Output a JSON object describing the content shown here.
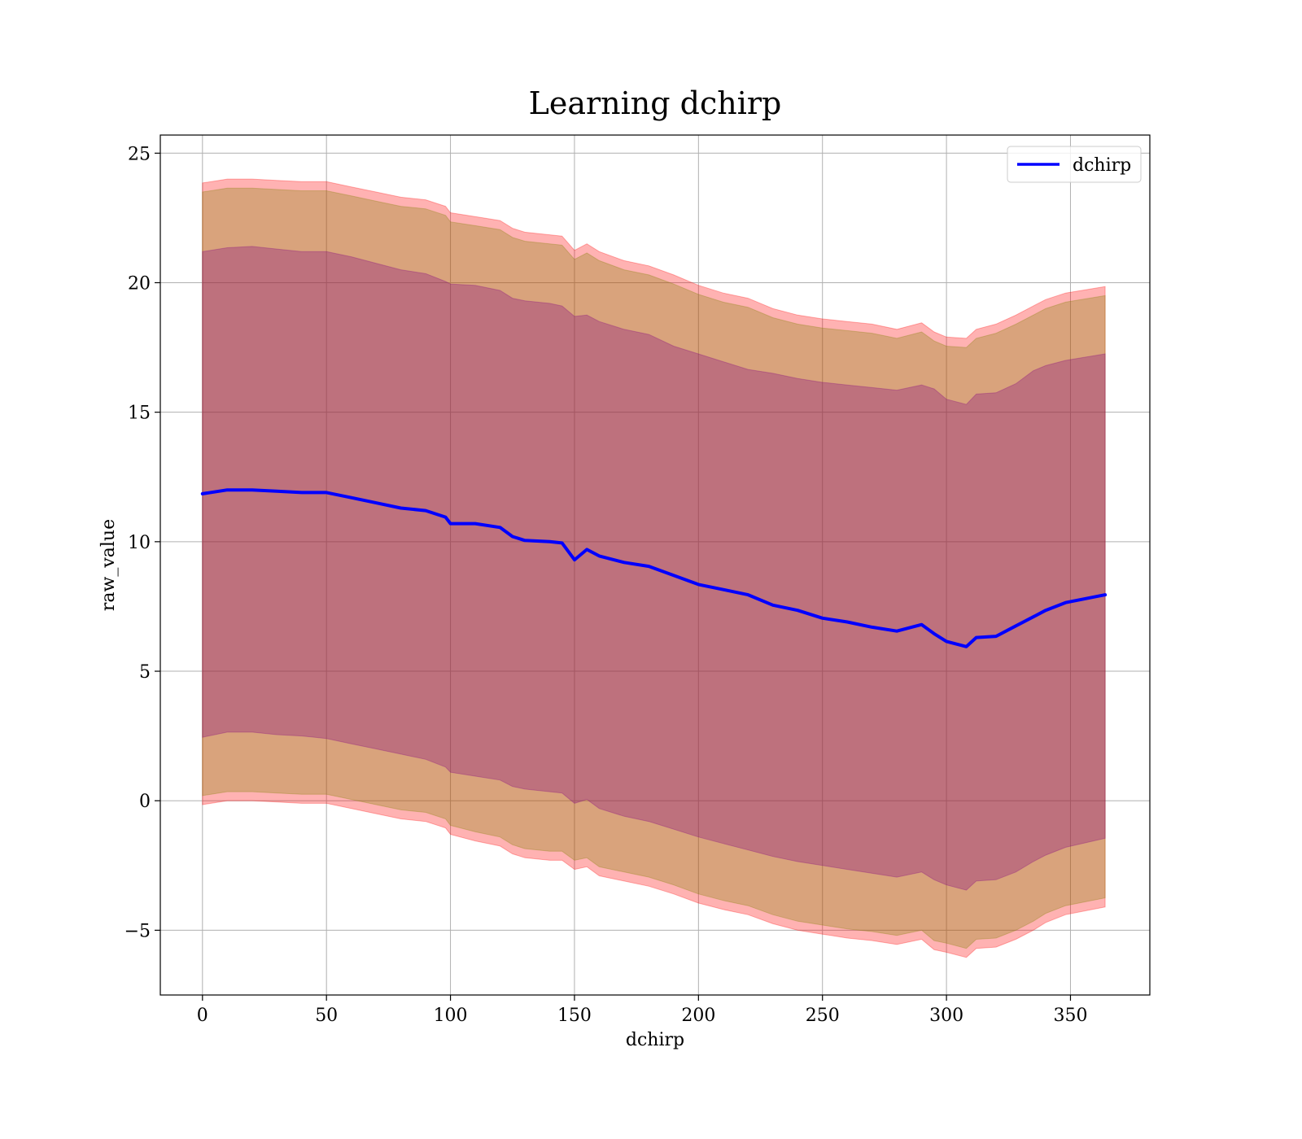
{
  "chart_data": {
    "type": "area",
    "title": "Learning dchirp",
    "xlabel": "dchirp",
    "ylabel": "raw_value",
    "xlim": [
      -17,
      382
    ],
    "ylim": [
      -7.5,
      25.7
    ],
    "xticks": [
      0,
      50,
      100,
      150,
      200,
      250,
      300,
      350
    ],
    "xtick_labels": [
      "0",
      "50",
      "100",
      "150",
      "200",
      "250",
      "300",
      "350"
    ],
    "yticks": [
      -5,
      0,
      5,
      10,
      15,
      20,
      25
    ],
    "ytick_labels": [
      "−5",
      "0",
      "5",
      "10",
      "15",
      "20",
      "25"
    ],
    "grid": true,
    "legend": {
      "position": "upper-right",
      "entries": [
        "dchirp"
      ]
    },
    "x": [
      0,
      10,
      20,
      30,
      40,
      50,
      60,
      70,
      80,
      90,
      98,
      100,
      110,
      120,
      125,
      130,
      140,
      145,
      150,
      155,
      160,
      170,
      180,
      190,
      200,
      210,
      220,
      230,
      240,
      250,
      260,
      270,
      280,
      290,
      295,
      300,
      308,
      312,
      320,
      328,
      335,
      340,
      348,
      364
    ],
    "series": [
      {
        "name": "dchirp",
        "color": "#0000ff",
        "values": [
          11.85,
          12.0,
          12.0,
          11.95,
          11.9,
          11.9,
          11.7,
          11.5,
          11.3,
          11.2,
          10.95,
          10.7,
          10.7,
          10.55,
          10.2,
          10.05,
          10.0,
          9.95,
          9.3,
          9.7,
          9.45,
          9.2,
          9.05,
          8.7,
          8.35,
          8.15,
          7.95,
          7.55,
          7.35,
          7.05,
          6.9,
          6.7,
          6.55,
          6.8,
          6.45,
          6.15,
          5.95,
          6.3,
          6.35,
          6.75,
          7.1,
          7.35,
          7.65,
          7.95
        ]
      }
    ],
    "bands": [
      {
        "color": "#ff0000",
        "opacity": 0.3,
        "upper": [
          23.85,
          24.0,
          24.0,
          23.95,
          23.9,
          23.9,
          23.7,
          23.5,
          23.3,
          23.2,
          22.95,
          22.7,
          22.55,
          22.4,
          22.1,
          21.95,
          21.85,
          21.8,
          21.25,
          21.5,
          21.2,
          20.85,
          20.65,
          20.3,
          19.9,
          19.6,
          19.4,
          19.0,
          18.75,
          18.6,
          18.5,
          18.4,
          18.2,
          18.45,
          18.1,
          17.9,
          17.85,
          18.2,
          18.4,
          18.75,
          19.1,
          19.35,
          19.6,
          19.85
        ],
        "lower": [
          -0.15,
          0.0,
          0.0,
          -0.05,
          -0.1,
          -0.1,
          -0.3,
          -0.5,
          -0.7,
          -0.8,
          -1.05,
          -1.3,
          -1.55,
          -1.75,
          -2.05,
          -2.2,
          -2.3,
          -2.3,
          -2.65,
          -2.55,
          -2.9,
          -3.1,
          -3.3,
          -3.6,
          -3.95,
          -4.2,
          -4.4,
          -4.75,
          -5.0,
          -5.15,
          -5.3,
          -5.4,
          -5.55,
          -5.35,
          -5.75,
          -5.85,
          -6.05,
          -5.7,
          -5.65,
          -5.35,
          -5.0,
          -4.7,
          -4.4,
          -4.1
        ]
      },
      {
        "color": "#808000",
        "opacity": 0.3,
        "upper": [
          23.5,
          23.65,
          23.65,
          23.6,
          23.55,
          23.55,
          23.35,
          23.15,
          22.95,
          22.85,
          22.6,
          22.35,
          22.2,
          22.05,
          21.75,
          21.6,
          21.5,
          21.45,
          20.9,
          21.15,
          20.85,
          20.5,
          20.3,
          19.95,
          19.55,
          19.25,
          19.05,
          18.65,
          18.4,
          18.25,
          18.15,
          18.05,
          17.85,
          18.1,
          17.75,
          17.55,
          17.5,
          17.85,
          18.05,
          18.4,
          18.75,
          19.0,
          19.25,
          19.5
        ],
        "lower": [
          0.2,
          0.35,
          0.35,
          0.3,
          0.25,
          0.25,
          0.05,
          -0.15,
          -0.35,
          -0.45,
          -0.7,
          -0.95,
          -1.2,
          -1.4,
          -1.7,
          -1.85,
          -1.95,
          -1.95,
          -2.3,
          -2.2,
          -2.55,
          -2.75,
          -2.95,
          -3.25,
          -3.6,
          -3.85,
          -4.05,
          -4.4,
          -4.65,
          -4.8,
          -4.95,
          -5.05,
          -5.2,
          -5.0,
          -5.4,
          -5.5,
          -5.7,
          -5.35,
          -5.3,
          -5.0,
          -4.65,
          -4.35,
          -4.05,
          -3.75
        ]
      },
      {
        "color": "#800080",
        "opacity": 0.3,
        "upper": [
          21.2,
          21.35,
          21.4,
          21.3,
          21.2,
          21.2,
          21.0,
          20.75,
          20.5,
          20.35,
          20.05,
          19.95,
          19.9,
          19.7,
          19.4,
          19.3,
          19.2,
          19.1,
          18.7,
          18.75,
          18.5,
          18.2,
          18.0,
          17.55,
          17.25,
          16.95,
          16.65,
          16.5,
          16.3,
          16.15,
          16.05,
          15.95,
          15.85,
          16.05,
          15.9,
          15.5,
          15.3,
          15.7,
          15.75,
          16.1,
          16.6,
          16.8,
          17.0,
          17.25
        ],
        "lower": [
          2.45,
          2.65,
          2.65,
          2.55,
          2.5,
          2.4,
          2.2,
          2.0,
          1.8,
          1.6,
          1.3,
          1.1,
          0.95,
          0.8,
          0.55,
          0.45,
          0.35,
          0.3,
          -0.1,
          0.05,
          -0.3,
          -0.6,
          -0.8,
          -1.1,
          -1.4,
          -1.65,
          -1.9,
          -2.15,
          -2.35,
          -2.5,
          -2.65,
          -2.8,
          -2.95,
          -2.75,
          -3.05,
          -3.25,
          -3.45,
          -3.1,
          -3.05,
          -2.75,
          -2.35,
          -2.1,
          -1.8,
          -1.45
        ]
      }
    ]
  }
}
